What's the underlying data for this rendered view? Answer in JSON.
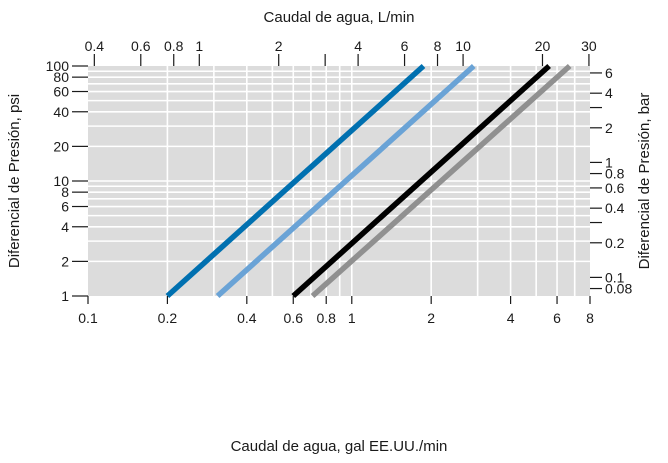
{
  "chart_data": {
    "type": "line",
    "x_scale": "log",
    "y_scale": "log",
    "grid": true,
    "legend": "none",
    "xlabel": "Caudal de agua, gal EE.UU./min",
    "ylabel": "Diferencial de Presión, psi",
    "x2label": "Caudal de agua, L/min",
    "y2label": "Diferencial de Presión, bar",
    "xlim": [
      0.1,
      8
    ],
    "ylim": [
      1,
      100
    ],
    "x2lim": [
      0.3785,
      30.28
    ],
    "y2lim": [
      0.0689,
      6.895
    ],
    "x_ticks": [
      {
        "value": 0.1,
        "label": "0.1"
      },
      {
        "value": 0.2,
        "label": "0.2"
      },
      {
        "value": 0.4,
        "label": "0.4"
      },
      {
        "value": 0.6,
        "label": "0.6"
      },
      {
        "value": 0.8,
        "label": "0.8"
      },
      {
        "value": 1,
        "label": "1"
      },
      {
        "value": 2,
        "label": "2"
      },
      {
        "value": 4,
        "label": "4"
      },
      {
        "value": 6,
        "label": "6"
      },
      {
        "value": 8,
        "label": "8"
      }
    ],
    "y_ticks": [
      {
        "value": 1,
        "label": "1"
      },
      {
        "value": 2,
        "label": "2"
      },
      {
        "value": 4,
        "label": "4"
      },
      {
        "value": 6,
        "label": "6"
      },
      {
        "value": 8,
        "label": "8"
      },
      {
        "value": 10,
        "label": "10"
      },
      {
        "value": 20,
        "label": "20"
      },
      {
        "value": 40,
        "label": "40"
      },
      {
        "value": 60,
        "label": "60"
      },
      {
        "value": 80,
        "label": "80"
      },
      {
        "value": 100,
        "label": "100"
      }
    ],
    "x2_ticks": [
      {
        "value": 0.4,
        "label": "0.4"
      },
      {
        "value": 0.6,
        "label": "0.6"
      },
      {
        "value": 0.8,
        "label": "0.8"
      },
      {
        "value": 1,
        "label": "1"
      },
      {
        "value": 2,
        "label": "2"
      },
      {
        "value": 3,
        "label": ""
      },
      {
        "value": 4,
        "label": "4"
      },
      {
        "value": 6,
        "label": "6"
      },
      {
        "value": 8,
        "label": "8"
      },
      {
        "value": 10,
        "label": "10"
      },
      {
        "value": 20,
        "label": "20"
      },
      {
        "value": 30,
        "label": "30"
      }
    ],
    "y2_ticks": [
      {
        "value": 0.08,
        "label": "0.08"
      },
      {
        "value": 0.1,
        "label": "0.1"
      },
      {
        "value": 0.2,
        "label": "0.2"
      },
      {
        "value": 0.3,
        "label": ""
      },
      {
        "value": 0.4,
        "label": "0.4"
      },
      {
        "value": 0.6,
        "label": "0.6"
      },
      {
        "value": 0.8,
        "label": "0.8"
      },
      {
        "value": 1,
        "label": "1"
      },
      {
        "value": 2,
        "label": "2"
      },
      {
        "value": 3,
        "label": ""
      },
      {
        "value": 4,
        "label": "4"
      },
      {
        "value": 6,
        "label": "6"
      }
    ],
    "x_grid": [
      0.2,
      0.3,
      0.4,
      0.5,
      0.6,
      0.7,
      0.8,
      0.9,
      1,
      2,
      3,
      4,
      5,
      6,
      7
    ],
    "y_grid": [
      2,
      3,
      4,
      5,
      6,
      7,
      8,
      9,
      10,
      20,
      30,
      40,
      50,
      60,
      70,
      80,
      90
    ],
    "series": [
      {
        "color": "#0070b0",
        "x": [
          0.2,
          1.87
        ],
        "y": [
          1,
          100
        ]
      },
      {
        "color": "#6aa3d6",
        "x": [
          0.31,
          2.9
        ],
        "y": [
          1,
          100
        ]
      },
      {
        "color": "#000000",
        "x": [
          0.6,
          5.6
        ],
        "y": [
          1,
          100
        ]
      },
      {
        "color": "#909090",
        "x": [
          0.71,
          6.7
        ],
        "y": [
          1,
          100
        ]
      }
    ],
    "colors": {
      "plot_background": "#dcdcdc",
      "grid": "#ffffff",
      "text": "#1a1a1a"
    }
  }
}
